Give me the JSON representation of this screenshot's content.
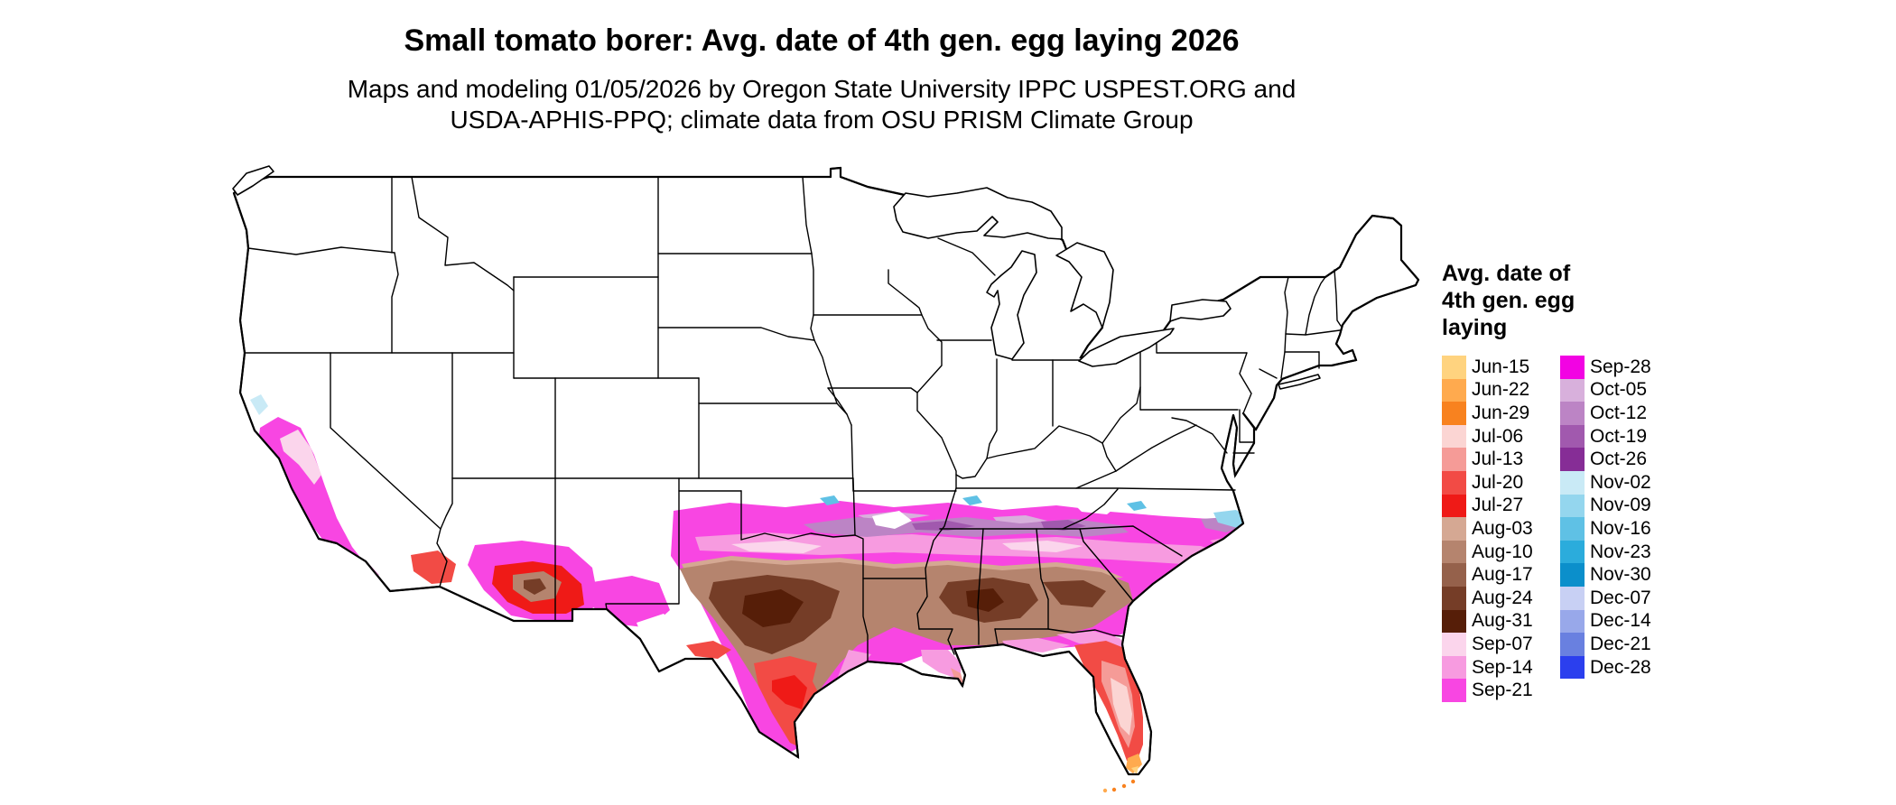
{
  "figure": {
    "title": "Small tomato borer: Avg. date of 4th gen. egg laying 2026",
    "subtitle_line1": "Maps and modeling 01/05/2026 by Oregon State University IPPC USPEST.ORG and",
    "subtitle_line2": "USDA-APHIS-PPQ; climate data from OSU PRISM Climate Group"
  },
  "legend": {
    "title_lines": [
      "Avg. date of",
      "4th gen. egg",
      "laying"
    ],
    "columns": [
      [
        "Jun-15",
        "Jun-22",
        "Jun-29",
        "Jul-06",
        "Jul-13",
        "Jul-20",
        "Jul-27",
        "Aug-03",
        "Aug-10",
        "Aug-17",
        "Aug-24",
        "Aug-31",
        "Sep-07",
        "Sep-14",
        "Sep-21"
      ],
      [
        "Sep-28",
        "Oct-05",
        "Oct-12",
        "Oct-19",
        "Oct-26",
        "Nov-02",
        "Nov-09",
        "Nov-16",
        "Nov-23",
        "Nov-30",
        "Dec-07",
        "Dec-14",
        "Dec-21",
        "Dec-28"
      ]
    ]
  },
  "palette": {
    "Jun-15": "#FFD37F",
    "Jun-22": "#FFAA4E",
    "Jun-29": "#F8821F",
    "Jul-06": "#FBD5D3",
    "Jul-13": "#F59B97",
    "Jul-20": "#F24B45",
    "Jul-27": "#EF1A17",
    "Aug-03": "#D5A893",
    "Aug-10": "#B5846E",
    "Aug-17": "#95614B",
    "Aug-24": "#753D27",
    "Aug-31": "#561E08",
    "Sep-07": "#FBD5EC",
    "Sep-14": "#F79BE0",
    "Sep-21": "#F846E2",
    "Sep-28": "#F203E3",
    "Oct-05": "#D8B0DC",
    "Oct-12": "#BC84C5",
    "Oct-19": "#A159AE",
    "Oct-26": "#862D96",
    "Nov-02": "#C9EAF6",
    "Nov-09": "#94D6EE",
    "Nov-16": "#5FC1E5",
    "Nov-23": "#2BACDC",
    "Nov-30": "#0B8FCB",
    "Dec-07": "#C8D0F4",
    "Dec-14": "#98A8EA",
    "Dec-21": "#6980E0",
    "Dec-28": "#2B3FEE"
  }
}
